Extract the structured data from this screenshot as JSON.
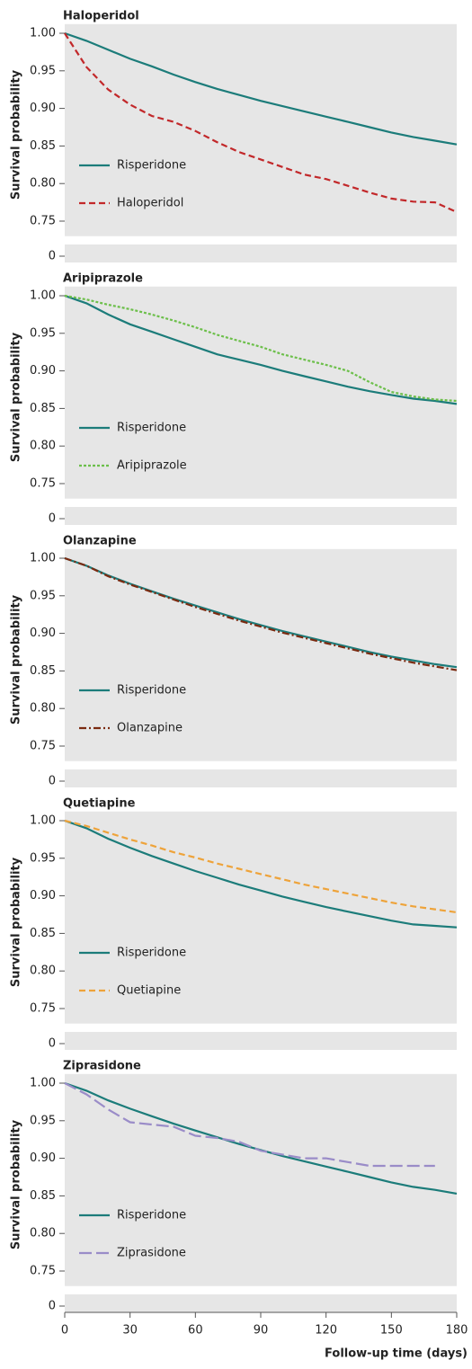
{
  "chart_data": [
    {
      "type": "line",
      "title": "Haloperidol",
      "ylabel": "Survival probability",
      "x": [
        0,
        10,
        20,
        30,
        40,
        50,
        60,
        70,
        80,
        90,
        100,
        110,
        120,
        130,
        140,
        150,
        160,
        170,
        180
      ],
      "xlim": [
        0,
        180
      ],
      "ylim": [
        0,
        1.005
      ],
      "y_break": [
        0.005,
        0.73
      ],
      "yticks": [
        0,
        {
          "value": 0.75,
          "label": "0.75"
        },
        {
          "value": 0.8,
          "label": "0.80"
        },
        {
          "value": 0.85,
          "label": "0.85"
        },
        {
          "value": 0.9,
          "label": "0.90"
        },
        {
          "value": 0.95,
          "label": "0.95"
        },
        {
          "value": 1,
          "label": "1.00"
        }
      ],
      "legend": "lower left",
      "series": [
        {
          "name": "Risperidone",
          "color": "#1c7c7a",
          "dash": "solid",
          "values": [
            1.0,
            0.99,
            0.978,
            0.966,
            0.956,
            0.945,
            0.935,
            0.926,
            0.918,
            0.91,
            0.903,
            0.896,
            0.889,
            0.882,
            0.875,
            0.868,
            0.862,
            0.857,
            0.852
          ]
        },
        {
          "name": "Haloperidol",
          "color": "#c2282a",
          "dash": "dashed",
          "values": [
            1.0,
            0.955,
            0.925,
            0.905,
            0.89,
            0.882,
            0.87,
            0.855,
            0.842,
            0.832,
            0.822,
            0.812,
            0.806,
            0.797,
            0.788,
            0.78,
            0.776,
            0.775,
            0.762
          ]
        }
      ]
    },
    {
      "type": "line",
      "title": "Aripiprazole",
      "ylabel": "Survival probability",
      "x": [
        0,
        10,
        20,
        30,
        40,
        50,
        60,
        70,
        80,
        90,
        100,
        110,
        120,
        130,
        140,
        150,
        160,
        170,
        180
      ],
      "xlim": [
        0,
        180
      ],
      "ylim": [
        0,
        1.005
      ],
      "y_break": [
        0.005,
        0.73
      ],
      "yticks": [
        0,
        {
          "value": 0.75,
          "label": "0.75"
        },
        {
          "value": 0.8,
          "label": "0.80"
        },
        {
          "value": 0.85,
          "label": "0.85"
        },
        {
          "value": 0.9,
          "label": "0.90"
        },
        {
          "value": 0.95,
          "label": "0.95"
        },
        {
          "value": 1,
          "label": "1.00"
        }
      ],
      "legend": "lower left",
      "series": [
        {
          "name": "Risperidone",
          "color": "#1c7c7a",
          "dash": "solid",
          "values": [
            1.0,
            0.99,
            0.975,
            0.962,
            0.952,
            0.942,
            0.932,
            0.922,
            0.915,
            0.908,
            0.9,
            0.893,
            0.886,
            0.879,
            0.873,
            0.868,
            0.863,
            0.86,
            0.856
          ]
        },
        {
          "name": "Aripiprazole",
          "color": "#6cbf4a",
          "dash": "dotted",
          "values": [
            1.0,
            0.995,
            0.988,
            0.982,
            0.975,
            0.967,
            0.958,
            0.948,
            0.94,
            0.932,
            0.922,
            0.915,
            0.908,
            0.9,
            0.885,
            0.872,
            0.866,
            0.862,
            0.86
          ]
        }
      ]
    },
    {
      "type": "line",
      "title": "Olanzapine",
      "ylabel": "Survival probability",
      "x": [
        0,
        10,
        20,
        30,
        40,
        50,
        60,
        70,
        80,
        90,
        100,
        110,
        120,
        130,
        140,
        150,
        160,
        170,
        180
      ],
      "xlim": [
        0,
        180
      ],
      "ylim": [
        0,
        1.005
      ],
      "y_break": [
        0.005,
        0.73
      ],
      "yticks": [
        0,
        {
          "value": 0.75,
          "label": "0.75"
        },
        {
          "value": 0.8,
          "label": "0.80"
        },
        {
          "value": 0.85,
          "label": "0.85"
        },
        {
          "value": 0.9,
          "label": "0.90"
        },
        {
          "value": 0.95,
          "label": "0.95"
        },
        {
          "value": 1,
          "label": "1.00"
        }
      ],
      "legend": "lower left",
      "series": [
        {
          "name": "Risperidone",
          "color": "#1c7c7a",
          "dash": "solid",
          "values": [
            1.0,
            0.99,
            0.977,
            0.966,
            0.956,
            0.946,
            0.937,
            0.928,
            0.919,
            0.911,
            0.903,
            0.896,
            0.889,
            0.882,
            0.875,
            0.869,
            0.864,
            0.859,
            0.855
          ]
        },
        {
          "name": "Olanzapine",
          "color": "#7a2a10",
          "dash": "dashdot",
          "values": [
            1.0,
            0.99,
            0.976,
            0.965,
            0.955,
            0.945,
            0.935,
            0.926,
            0.917,
            0.909,
            0.901,
            0.894,
            0.887,
            0.88,
            0.873,
            0.867,
            0.861,
            0.856,
            0.851
          ]
        }
      ]
    },
    {
      "type": "line",
      "title": "Quetiapine",
      "ylabel": "Survival probability",
      "x": [
        0,
        10,
        20,
        30,
        40,
        50,
        60,
        70,
        80,
        90,
        100,
        110,
        120,
        130,
        140,
        150,
        160,
        170,
        180
      ],
      "xlim": [
        0,
        180
      ],
      "ylim": [
        0,
        1.005
      ],
      "y_break": [
        0.005,
        0.73
      ],
      "yticks": [
        0,
        {
          "value": 0.75,
          "label": "0.75"
        },
        {
          "value": 0.8,
          "label": "0.80"
        },
        {
          "value": 0.85,
          "label": "0.85"
        },
        {
          "value": 0.9,
          "label": "0.90"
        },
        {
          "value": 0.95,
          "label": "0.95"
        },
        {
          "value": 1,
          "label": "1.00"
        }
      ],
      "legend": "lower left",
      "series": [
        {
          "name": "Risperidone",
          "color": "#1c7c7a",
          "dash": "solid",
          "values": [
            1.0,
            0.99,
            0.976,
            0.964,
            0.953,
            0.943,
            0.933,
            0.924,
            0.915,
            0.907,
            0.899,
            0.892,
            0.885,
            0.879,
            0.873,
            0.867,
            0.862,
            0.86,
            0.858
          ]
        },
        {
          "name": "Quetiapine",
          "color": "#eea33a",
          "dash": "dashed",
          "values": [
            1.0,
            0.993,
            0.984,
            0.975,
            0.967,
            0.958,
            0.951,
            0.943,
            0.936,
            0.929,
            0.922,
            0.915,
            0.909,
            0.903,
            0.897,
            0.891,
            0.886,
            0.882,
            0.878
          ]
        }
      ]
    },
    {
      "type": "line",
      "title": "Ziprasidone",
      "ylabel": "Survival probability",
      "xlabel": "Follow-up time (days)",
      "x": [
        0,
        10,
        20,
        30,
        40,
        50,
        60,
        70,
        80,
        90,
        100,
        110,
        120,
        130,
        140,
        150,
        160,
        170,
        180
      ],
      "xlim": [
        0,
        180
      ],
      "xticks": [
        0,
        30,
        60,
        90,
        120,
        150,
        180
      ],
      "ylim": [
        0,
        1.005
      ],
      "y_break": [
        0.005,
        0.73
      ],
      "yticks": [
        0,
        {
          "value": 0.75,
          "label": "0.75"
        },
        {
          "value": 0.8,
          "label": "0.80"
        },
        {
          "value": 0.85,
          "label": "0.85"
        },
        {
          "value": 0.9,
          "label": "0.90"
        },
        {
          "value": 0.95,
          "label": "0.95"
        },
        {
          "value": 1,
          "label": "1.00"
        }
      ],
      "legend": "lower left",
      "series": [
        {
          "name": "Risperidone",
          "color": "#1c7c7a",
          "dash": "solid",
          "values": [
            1.0,
            0.99,
            0.977,
            0.966,
            0.956,
            0.946,
            0.937,
            0.928,
            0.919,
            0.911,
            0.903,
            0.896,
            0.889,
            0.882,
            0.875,
            0.868,
            0.862,
            0.858,
            0.853
          ]
        },
        {
          "name": "Ziprasidone",
          "color": "#9a8cc8",
          "dash": "longdash",
          "values": [
            1.0,
            0.985,
            0.965,
            0.948,
            0.945,
            0.942,
            0.93,
            0.927,
            0.922,
            0.91,
            0.905,
            0.9,
            0.9,
            0.895,
            0.89,
            0.89,
            0.89,
            0.89,
            null
          ]
        }
      ]
    }
  ]
}
